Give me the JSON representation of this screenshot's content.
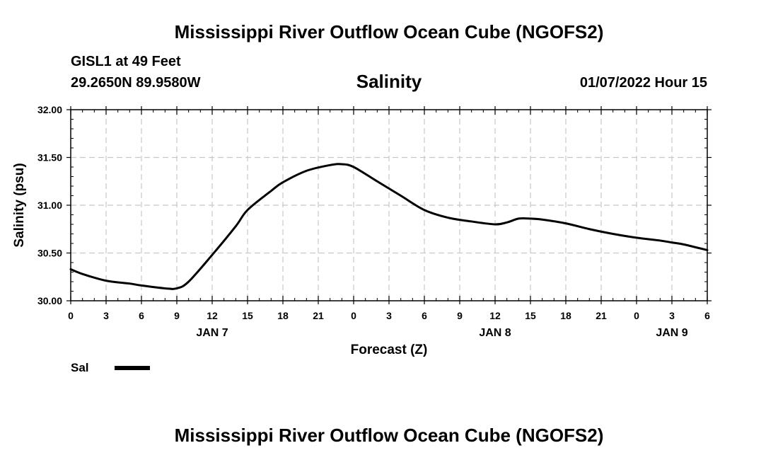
{
  "page": {
    "title": "Mississippi River Outflow Ocean Cube (NGOFS2)",
    "footer_title": "Mississippi River Outflow Ocean Cube (NGOFS2)",
    "station": "GISL1 at 49 Feet",
    "coordinates": "29.2650N  89.9580W",
    "subtitle": "Salinity",
    "datetime": "01/07/2022 Hour 15"
  },
  "chart_data": {
    "type": "line",
    "title": "Salinity",
    "xlabel": "Forecast (Z)",
    "ylabel": "Salinity (psu)",
    "ylim": [
      30.0,
      32.0
    ],
    "yticks": [
      "30.00",
      "30.50",
      "31.00",
      "31.50",
      "32.00"
    ],
    "xlim": [
      0,
      54
    ],
    "xticks": [
      "0",
      "3",
      "6",
      "9",
      "12",
      "15",
      "18",
      "21",
      "0",
      "3",
      "6",
      "9",
      "12",
      "15",
      "18",
      "21",
      "0",
      "3",
      "6"
    ],
    "date_labels": [
      {
        "label": "JAN 7",
        "hour": 12
      },
      {
        "label": "JAN 8",
        "hour": 36
      },
      {
        "label": "JAN 9",
        "hour": 51
      }
    ],
    "grid": true,
    "legend_position": "bottom-left",
    "series": [
      {
        "name": "Sal",
        "color": "#000000",
        "x": [
          0,
          1,
          3,
          5,
          6,
          8,
          9,
          10,
          12,
          14,
          15,
          17,
          18,
          20,
          22,
          23,
          24,
          26,
          28,
          30,
          32,
          34,
          36,
          37,
          38,
          39,
          40,
          42,
          44,
          46,
          48,
          50,
          51,
          52,
          54
        ],
        "y": [
          30.33,
          30.28,
          30.21,
          30.18,
          30.16,
          30.13,
          30.13,
          30.2,
          30.48,
          30.78,
          30.95,
          31.15,
          31.24,
          31.36,
          31.42,
          31.43,
          31.4,
          31.25,
          31.1,
          30.95,
          30.87,
          30.83,
          30.8,
          30.82,
          30.86,
          30.86,
          30.85,
          30.81,
          30.75,
          30.7,
          30.66,
          30.63,
          30.61,
          30.59,
          30.53
        ]
      }
    ]
  }
}
